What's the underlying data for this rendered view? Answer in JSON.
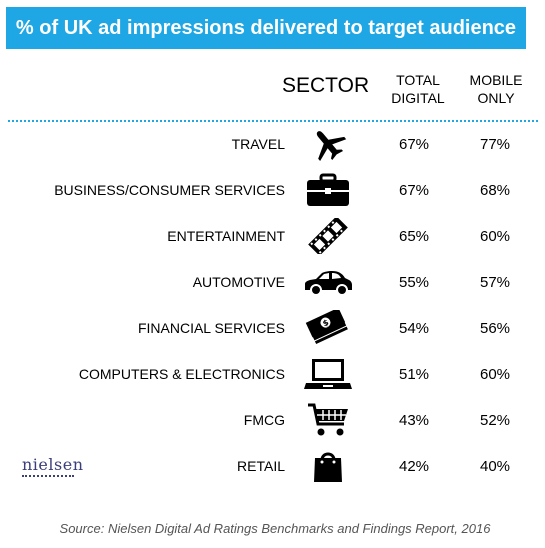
{
  "header": {
    "title": "% of UK ad impressions delivered to target audience",
    "title_bg": "#1ea7e4"
  },
  "columns": {
    "sector": "SECTOR",
    "total": [
      "TOTAL",
      "DIGITAL"
    ],
    "mobile": [
      "MOBILE",
      "ONLY"
    ]
  },
  "rows": [
    {
      "sector": "TRAVEL",
      "icon": "airplane-icon",
      "total": "67%",
      "mobile": "77%"
    },
    {
      "sector": "BUSINESS/CONSUMER SERVICES",
      "icon": "briefcase-icon",
      "total": "67%",
      "mobile": "68%"
    },
    {
      "sector": "ENTERTAINMENT",
      "icon": "film-strip-icon",
      "total": "65%",
      "mobile": "60%"
    },
    {
      "sector": "AUTOMOTIVE",
      "icon": "car-icon",
      "total": "55%",
      "mobile": "57%"
    },
    {
      "sector": "FINANCIAL SERVICES",
      "icon": "money-stack-icon",
      "total": "54%",
      "mobile": "56%"
    },
    {
      "sector": "COMPUTERS & ELECTRONICS",
      "icon": "laptop-icon",
      "total": "51%",
      "mobile": "60%"
    },
    {
      "sector": "FMCG",
      "icon": "shopping-cart-icon",
      "total": "43%",
      "mobile": "52%"
    },
    {
      "sector": "RETAIL",
      "icon": "shopping-bag-icon",
      "total": "42%",
      "mobile": "40%"
    }
  ],
  "chart_data": {
    "type": "table",
    "title": "% of UK ad impressions delivered to target audience",
    "columns": [
      "SECTOR",
      "TOTAL DIGITAL",
      "MOBILE ONLY"
    ],
    "categories": [
      "TRAVEL",
      "BUSINESS/CONSUMER SERVICES",
      "ENTERTAINMENT",
      "AUTOMOTIVE",
      "FINANCIAL SERVICES",
      "COMPUTERS & ELECTRONICS",
      "FMCG",
      "RETAIL"
    ],
    "series": [
      {
        "name": "TOTAL DIGITAL",
        "values": [
          67,
          67,
          65,
          55,
          54,
          51,
          43,
          42
        ]
      },
      {
        "name": "MOBILE ONLY",
        "values": [
          77,
          68,
          60,
          57,
          56,
          60,
          52,
          40
        ]
      }
    ]
  },
  "logo": {
    "text": "nielsen"
  },
  "source": "Source: Nielsen Digital Ad Ratings Benchmarks and Findings Report, 2016"
}
